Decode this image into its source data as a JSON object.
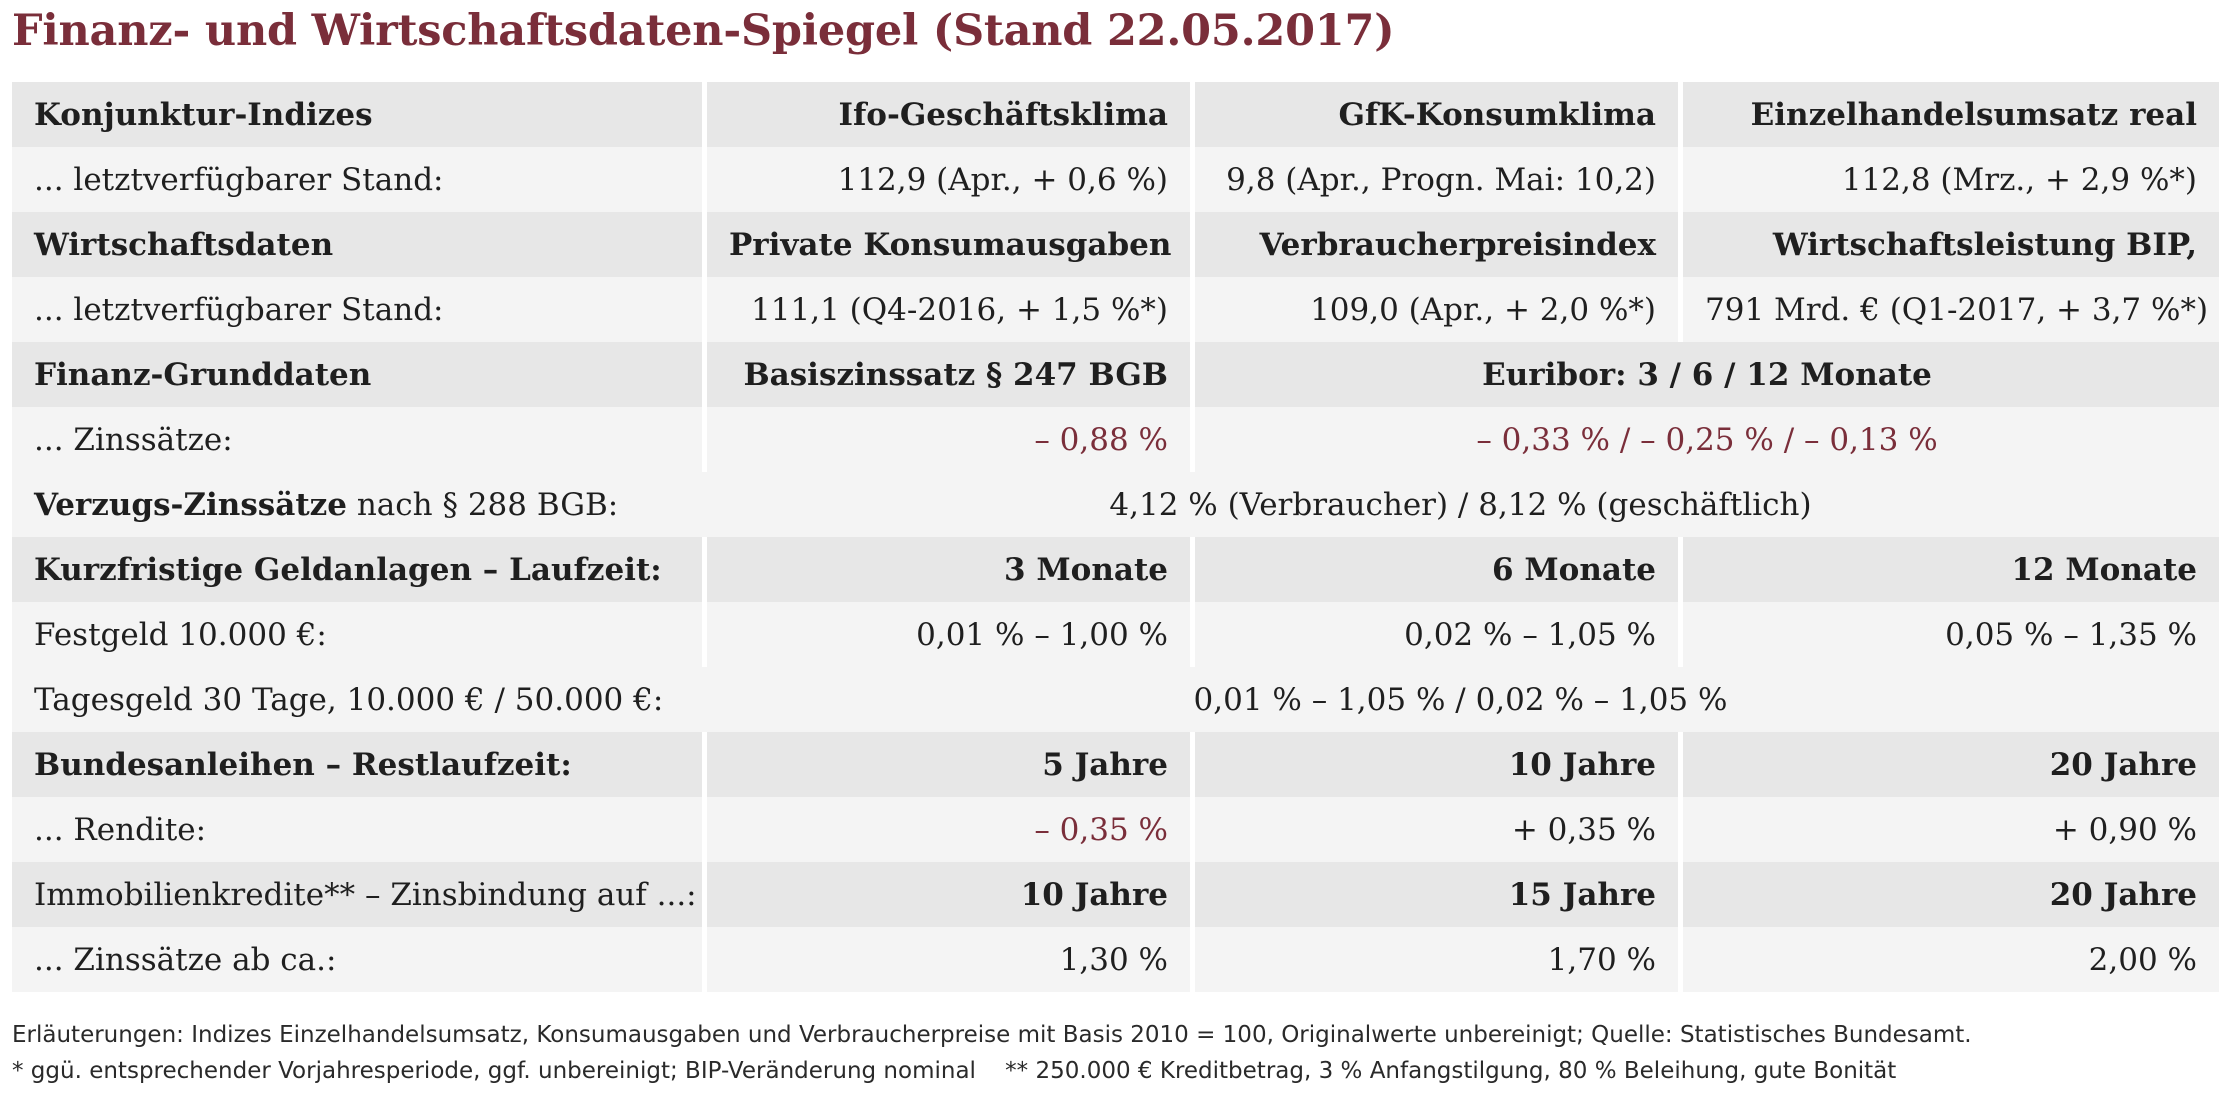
{
  "title": "Finanz- und Wirtschaftsdaten-Spiegel (Stand 22.05.2017)",
  "sections": {
    "konjunktur": {
      "header": "Konjunktur-Indizes",
      "col1": "Ifo-Geschäftsklima",
      "col2": "GfK-Konsumklima",
      "col3": "Einzelhandelsumsatz real",
      "row_label": "... letztverfügbarer Stand:",
      "val1": "112,9 (Apr., + 0,6 %)",
      "val2": "9,8 (Apr., Progn. Mai: 10,2)",
      "val3": "112,8 (Mrz., + 2,9 %*)"
    },
    "wirtschaft": {
      "header": "Wirtschaftsdaten",
      "col1": "Private Konsumausgaben",
      "col2": "Verbraucherpreisindex",
      "col3": "Wirtschaftsleistung BIP,",
      "row_label": "... letztverfügbarer Stand:",
      "val1": "111,1 (Q4-2016, + 1,5 %*)",
      "val2": "109,0 (Apr., + 2,0 %*)",
      "val3": "791 Mrd. € (Q1-2017, + 3,7 %*)"
    },
    "finanz": {
      "header": "Finanz-Grunddaten",
      "col1": "Basiszinssatz § 247 BGB",
      "col23": "Euribor: 3 / 6 / 12 Monate",
      "row_label": "... Zinssätze:",
      "val1": "– 0,88 %",
      "val23": "– 0,33 % / – 0,25 % / – 0,13 %"
    },
    "verzug": {
      "label_bold": "Verzugs-Zinssätze",
      "label_rest": " nach § 288 BGB:",
      "value": "4,12 % (Verbraucher) / 8,12 % (geschäftlich)"
    },
    "geldanlagen": {
      "header": "Kurzfristige Geldanlagen – Laufzeit:",
      "col1": "3 Monate",
      "col2": "6 Monate",
      "col3": "12 Monate",
      "festgeld_label": "Festgeld 10.000 €:",
      "festgeld1": "0,01 % – 1,00 %",
      "festgeld2": "0,02 % – 1,05 %",
      "festgeld3": "0,05 % – 1,35 %",
      "tagesgeld_label": "Tagesgeld 30 Tage, 10.000 € / 50.000 €:",
      "tagesgeld_value": "0,01 % – 1,05 % / 0,02 % – 1,05 %"
    },
    "anleihen": {
      "header": "Bundesanleihen – Restlaufzeit:",
      "col1": "5 Jahre",
      "col2": "10 Jahre",
      "col3": "20 Jahre",
      "row_label": "... Rendite:",
      "val1": "– 0,35 %",
      "val2": "+ 0,35 %",
      "val3": "+ 0,90 %"
    },
    "immobilien": {
      "header": "Immobilienkredite** – Zinsbindung auf ...:",
      "col1": "10 Jahre",
      "col2": "15 Jahre",
      "col3": "20 Jahre",
      "row_label": "... Zinssätze ab ca.:",
      "val1": "1,30 %",
      "val2": "1,70 %",
      "val3": "2,00 %"
    }
  },
  "footnotes": {
    "line1": "Erläuterungen: Indizes Einzelhandelsumsatz, Konsumausgaben und Verbraucherpreise mit Basis 2010 = 100, Originalwerte unbereinigt; Quelle: Statistisches Bundesamt.",
    "line2": "* ggü. entsprechender Vorjahresperiode, ggf. unbereinigt; BIP-Veränderung nominal    ** 250.000 € Kreditbetrag, 3 % Anfangstilgung, 80 % Beleihung, gute Bonität"
  },
  "colors": {
    "accent": "#7a2e3a",
    "row_dark": "#e7e7e7",
    "row_light": "#f4f4f4"
  }
}
